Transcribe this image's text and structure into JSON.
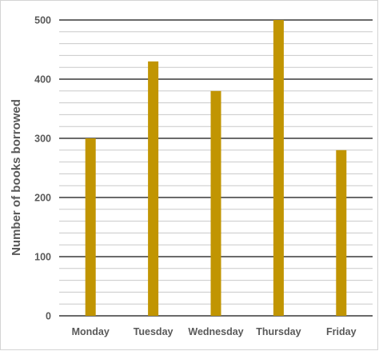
{
  "chart_data": {
    "type": "bar",
    "title": "",
    "xlabel": "",
    "ylabel": "Number of books borrowed",
    "categories": [
      "Monday",
      "Tuesday",
      "Wednesday",
      "Thursday",
      "Friday"
    ],
    "values": [
      300,
      430,
      380,
      500,
      280
    ],
    "ylim": [
      0,
      500
    ],
    "major_ticks": [
      0,
      100,
      200,
      300,
      400,
      500
    ],
    "minor_step": 20,
    "grid": true,
    "legend": "none",
    "colors": {
      "bar": "#c19502",
      "major_grid": "#111111",
      "minor_grid": "#c9c9c9",
      "text": "#595959"
    }
  }
}
